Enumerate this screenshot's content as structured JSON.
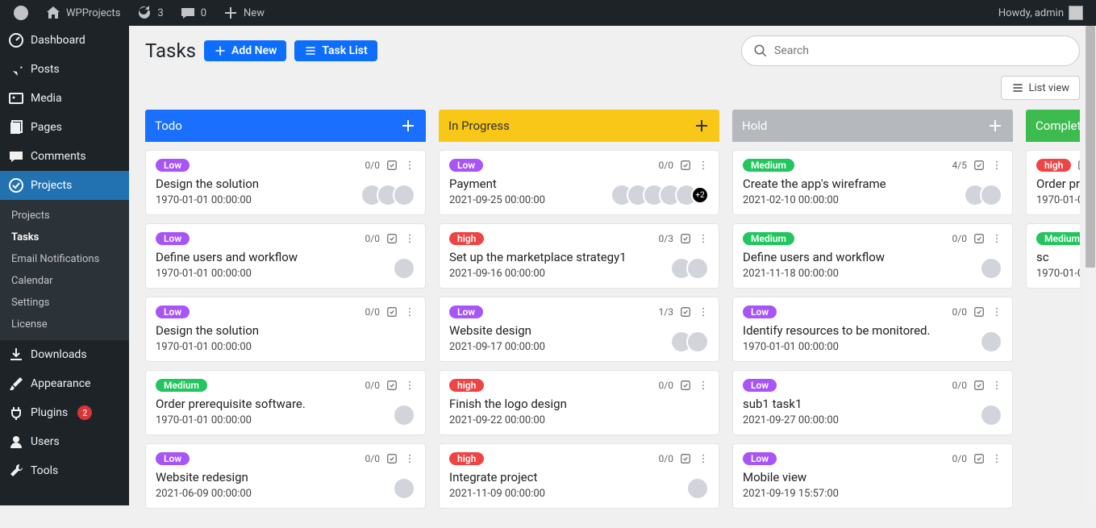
{
  "adminbar": {
    "site_name": "WPProjects",
    "updates_count": "3",
    "comments_count": "0",
    "new_label": "New",
    "howdy": "Howdy, admin"
  },
  "sidemenu": {
    "items": [
      {
        "label": "Dashboard",
        "icon": "dashboard"
      },
      {
        "label": "Posts",
        "icon": "pin"
      },
      {
        "label": "Media",
        "icon": "media"
      },
      {
        "label": "Pages",
        "icon": "pages"
      },
      {
        "label": "Comments",
        "icon": "comments"
      },
      {
        "label": "Projects",
        "icon": "check",
        "active": true
      },
      {
        "label": "Downloads",
        "icon": "download"
      },
      {
        "label": "Appearance",
        "icon": "brush"
      },
      {
        "label": "Plugins",
        "icon": "plug",
        "badge": "2"
      },
      {
        "label": "Users",
        "icon": "user"
      },
      {
        "label": "Tools",
        "icon": "wrench"
      }
    ],
    "sub": [
      {
        "label": "Projects"
      },
      {
        "label": "Tasks",
        "active": true
      },
      {
        "label": "Email Notifications"
      },
      {
        "label": "Calendar"
      },
      {
        "label": "Settings"
      },
      {
        "label": "License"
      }
    ]
  },
  "header": {
    "title": "Tasks",
    "add_new": "Add New",
    "task_list": "Task List",
    "search_placeholder": "Search",
    "list_view": "List view"
  },
  "columns": [
    {
      "name": "Todo",
      "class": "todo",
      "cards": [
        {
          "priority": "Low",
          "p_class": "low",
          "ratio": "0/0",
          "title": "Design the solution",
          "date": "1970-01-01 00:00:00",
          "avatars": 3
        },
        {
          "priority": "Low",
          "p_class": "low",
          "ratio": "0/0",
          "title": "Define users and workflow",
          "date": "1970-01-01 00:00:00",
          "avatars": 1
        },
        {
          "priority": "Low",
          "p_class": "low",
          "ratio": "0/0",
          "title": "Design the solution",
          "date": "1970-01-01 00:00:00",
          "avatars": 0
        },
        {
          "priority": "Medium",
          "p_class": "medium",
          "ratio": "0/0",
          "title": "Order prerequisite software.",
          "date": "1970-01-01 00:00:00",
          "avatars": 1
        },
        {
          "priority": "Low",
          "p_class": "low",
          "ratio": "0/0",
          "title": "Website redesign",
          "date": "2021-06-09 00:00:00",
          "avatars": 1
        }
      ]
    },
    {
      "name": "In Progress",
      "class": "inprogress",
      "cards": [
        {
          "priority": "Low",
          "p_class": "low",
          "ratio": "0/0",
          "title": "Payment",
          "date": "2021-09-25 00:00:00",
          "avatars": 5,
          "more": "+2"
        },
        {
          "priority": "high",
          "p_class": "high",
          "ratio": "0/3",
          "title": "Set up the marketplace strategy1",
          "date": "2021-09-16 00:00:00",
          "avatars": 2
        },
        {
          "priority": "Low",
          "p_class": "low",
          "ratio": "1/3",
          "title": "Website design",
          "date": "2021-09-17 00:00:00",
          "avatars": 2
        },
        {
          "priority": "high",
          "p_class": "high",
          "ratio": "0/0",
          "title": "Finish the logo design",
          "date": "2021-09-22 00:00:00",
          "avatars": 0
        },
        {
          "priority": "high",
          "p_class": "high",
          "ratio": "0/0",
          "title": "Integrate project",
          "date": "2021-11-09 00:00:00",
          "avatars": 1
        }
      ]
    },
    {
      "name": "Hold",
      "class": "hold",
      "cards": [
        {
          "priority": "Medium",
          "p_class": "medium",
          "ratio": "4/5",
          "title": "Create the app's wireframe",
          "date": "2021-02-10 00:00:00",
          "avatars": 2
        },
        {
          "priority": "Medium",
          "p_class": "medium",
          "ratio": "0/0",
          "title": "Define users and workflow",
          "date": "2021-11-18 00:00:00",
          "avatars": 1
        },
        {
          "priority": "Low",
          "p_class": "low",
          "ratio": "0/0",
          "title": "Identify resources to be monitored.",
          "date": "1970-01-01 00:00:00",
          "avatars": 1
        },
        {
          "priority": "Low",
          "p_class": "low",
          "ratio": "0/0",
          "title": "sub1 task1",
          "date": "2021-09-27 00:00:00",
          "avatars": 1
        },
        {
          "priority": "Low",
          "p_class": "low",
          "ratio": "0/0",
          "title": "Mobile view",
          "date": "2021-09-19 15:57:00",
          "avatars": 0
        }
      ]
    },
    {
      "name": "Complete",
      "class": "complete",
      "clip": true,
      "cards": [
        {
          "priority": "high",
          "p_class": "high",
          "ratio": "",
          "title": "Order pr",
          "date": "1970-01-0",
          "avatars": 0
        },
        {
          "priority": "Medium",
          "p_class": "medium",
          "ratio": "",
          "title": "sc",
          "date": "1970-01-0",
          "avatars": 0
        }
      ]
    }
  ]
}
